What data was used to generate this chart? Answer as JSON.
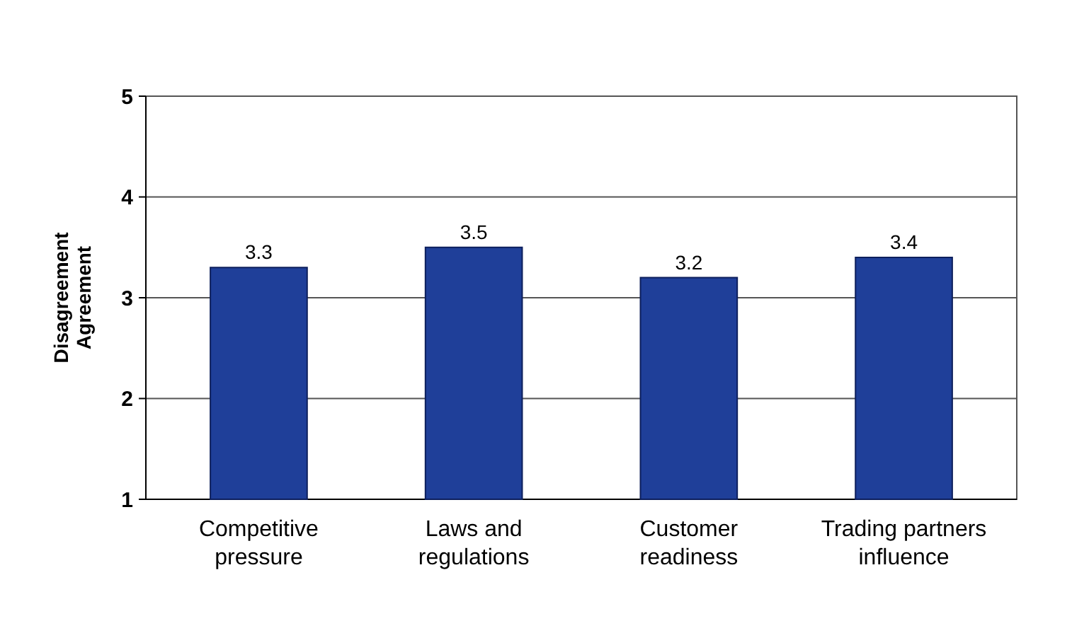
{
  "chart_data": {
    "type": "bar",
    "ylabel": "Disagreement Agreement",
    "categories": [
      "Competitive pressure",
      "Laws and regulations",
      "Customer readiness",
      "Trading partners influence"
    ],
    "values": [
      3.3,
      3.5,
      3.2,
      3.4
    ],
    "color": "#1f3f99",
    "ylim": [
      1,
      5
    ],
    "yticks": [
      1,
      2,
      3,
      4,
      5
    ],
    "grid": "y",
    "data_labels": true
  }
}
